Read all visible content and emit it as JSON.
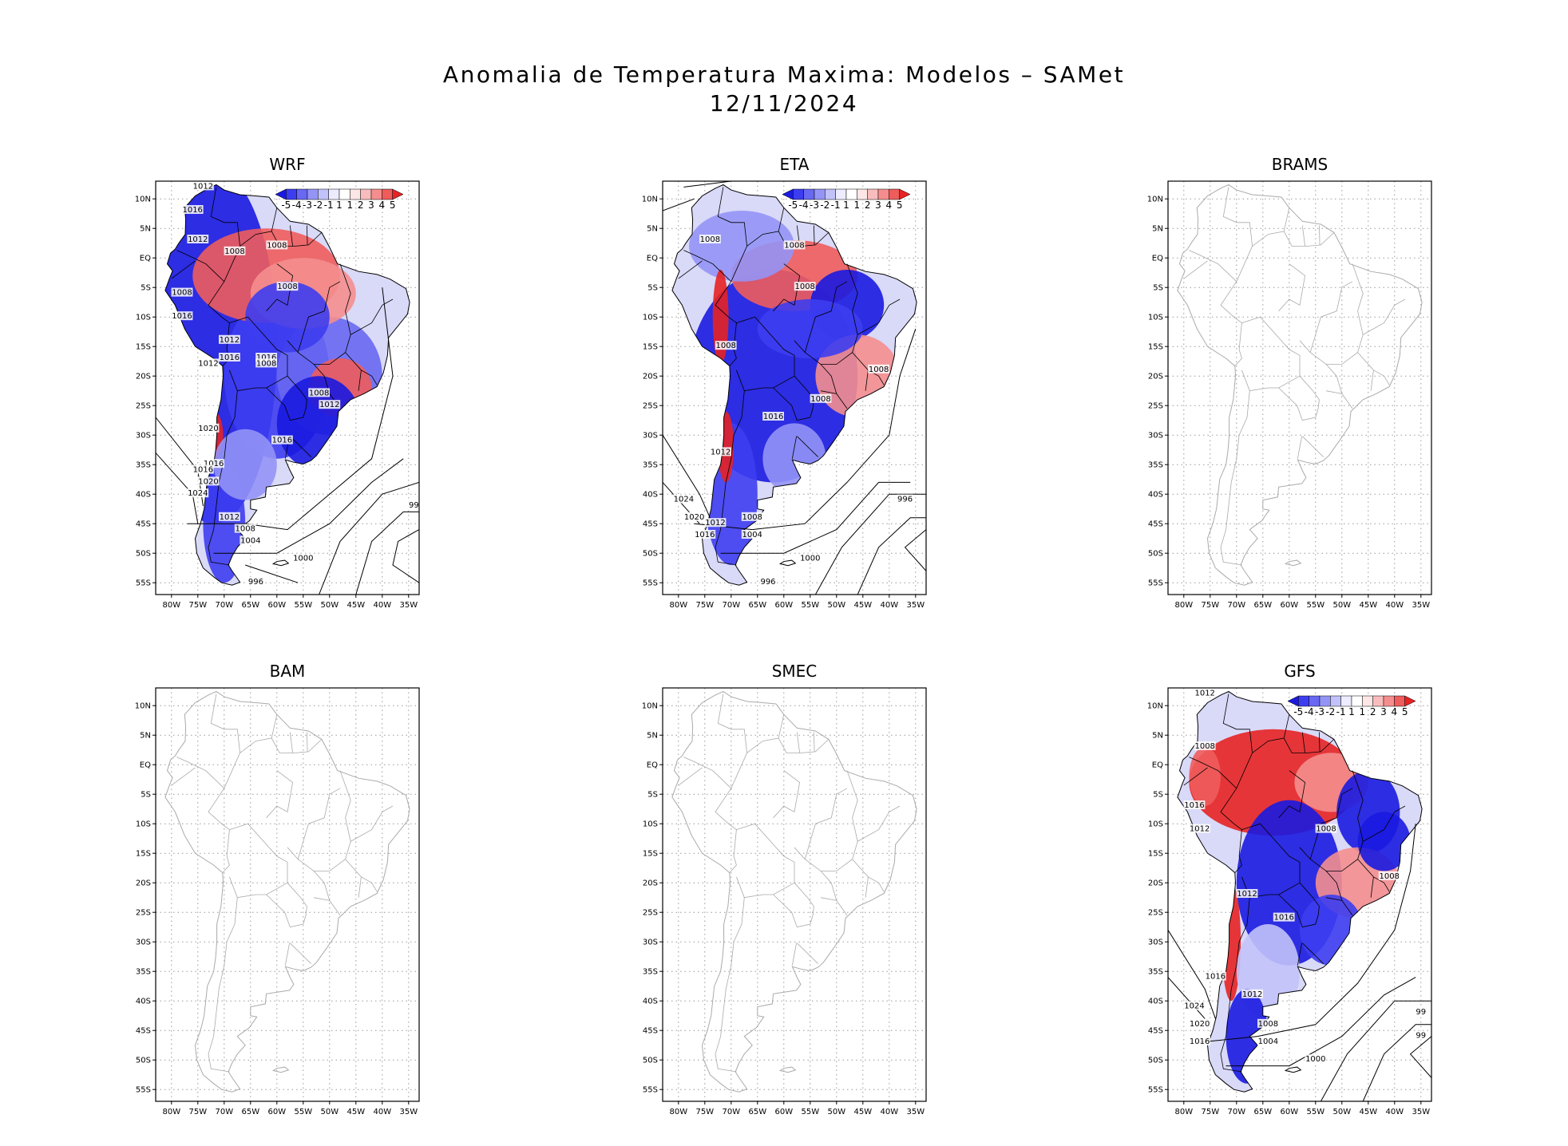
{
  "figure": {
    "title": "Anomalia de Temperatura Maxima: Modelos – SAMet",
    "date": "12/11/2024"
  },
  "axes": {
    "lat_labels": [
      "10N",
      "5N",
      "EQ",
      "5S",
      "10S",
      "15S",
      "20S",
      "25S",
      "30S",
      "35S",
      "40S",
      "45S",
      "50S",
      "55S"
    ],
    "lon_labels": [
      "80W",
      "75W",
      "70W",
      "65W",
      "60W",
      "55W",
      "50W",
      "45W",
      "40W",
      "35W"
    ]
  },
  "colorbar": {
    "labels": [
      "-5",
      "-4",
      "-3",
      "-2",
      "-1",
      "1",
      "1",
      "2",
      "3",
      "4",
      "5"
    ],
    "colors": [
      "#1a1ae0",
      "#3d3df0",
      "#6868f2",
      "#9494f6",
      "#c2c2fa",
      "#ececfe",
      "#ffffff",
      "#fde6e6",
      "#f9bcbc",
      "#f48e8e",
      "#ee5c5c",
      "#e62222"
    ]
  },
  "panels": [
    {
      "name": "WRF",
      "has_data": true,
      "contour_labels": [
        "1012",
        "1016",
        "1012",
        "1008",
        "1008",
        "1008",
        "1008",
        "1016",
        "1016",
        "1012",
        "1012",
        "1016",
        "1008",
        "1008",
        "1012",
        "1020",
        "1016",
        "1016",
        "1016",
        "1020",
        "1024",
        "1012",
        "1008",
        "1004",
        "1000",
        "996",
        "99"
      ],
      "regions": [
        {
          "type": "warm",
          "label": "Amazon"
        },
        {
          "type": "cold",
          "label": "Central Brazil"
        },
        {
          "type": "warm",
          "label": "Southeast Brazil"
        },
        {
          "type": "cold",
          "label": "Argentina"
        },
        {
          "type": "warm",
          "label": "Chile coast"
        }
      ]
    },
    {
      "name": "ETA",
      "has_data": true,
      "contour_labels": [
        "1008",
        "1008",
        "1008",
        "1008",
        "1008",
        "1008",
        "1016",
        "1012",
        "1024",
        "1020",
        "1012",
        "1016",
        "1008",
        "1004",
        "1000",
        "996",
        "996"
      ],
      "regions": [
        {
          "type": "warm",
          "label": "Amazon"
        },
        {
          "type": "cold",
          "label": "Central Brazil"
        },
        {
          "type": "warm",
          "label": "Southeast Brazil"
        },
        {
          "type": "cold",
          "label": "Argentina"
        },
        {
          "type": "warm",
          "label": "Chile coast"
        }
      ]
    },
    {
      "name": "BRAMS",
      "has_data": false,
      "contour_labels": [],
      "regions": []
    },
    {
      "name": "BAM",
      "has_data": false,
      "contour_labels": [],
      "regions": []
    },
    {
      "name": "SMEC",
      "has_data": false,
      "contour_labels": [],
      "regions": []
    },
    {
      "name": "GFS",
      "has_data": true,
      "contour_labels": [
        "1012",
        "1008",
        "1016",
        "1012",
        "1008",
        "1008",
        "1012",
        "1016",
        "1016",
        "1012",
        "1024",
        "1020",
        "1016",
        "1008",
        "1004",
        "1000",
        "99",
        "99"
      ],
      "regions": [
        {
          "type": "warm",
          "label": "Amazon"
        },
        {
          "type": "cold",
          "label": "Northeast Brazil"
        },
        {
          "type": "cold",
          "label": "Central Brazil"
        },
        {
          "type": "warm",
          "label": "Southeast Brazil"
        },
        {
          "type": "warm",
          "label": "Chile coast"
        }
      ]
    }
  ]
}
